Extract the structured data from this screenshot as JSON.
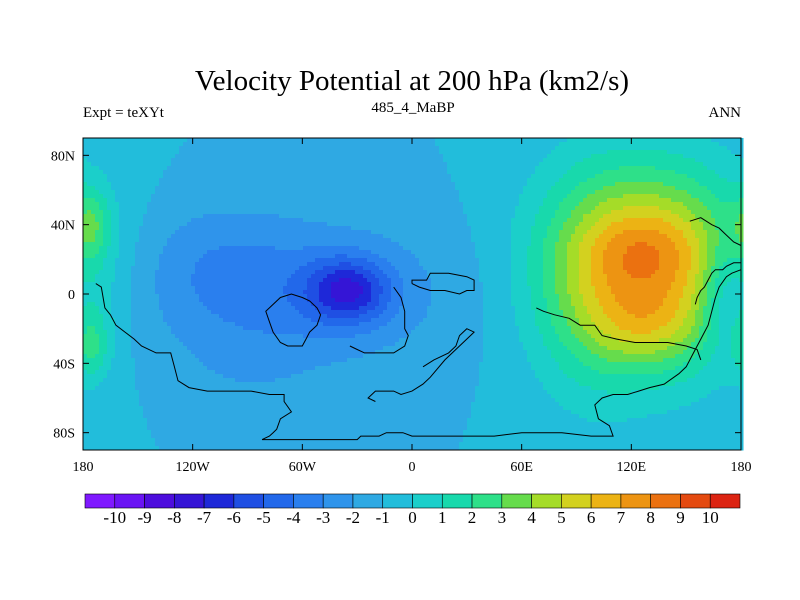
{
  "chart_data": {
    "type": "heatmap",
    "title": "Velocity Potential at 200 hPa (km2/s)",
    "left_label": "Expt = teXYt",
    "center_label": "485_4_MaBP",
    "right_label": "ANN",
    "x_ticks": [
      "180",
      "120W",
      "60W",
      "0",
      "60E",
      "120E",
      "180"
    ],
    "y_ticks": [
      "80N",
      "40N",
      "0",
      "40S",
      "80S"
    ],
    "xlim": [
      -180,
      180
    ],
    "ylim": [
      -90,
      90
    ],
    "colorbar_labels": [
      "-10",
      "-9",
      "-8",
      "-7",
      "-6",
      "-5",
      "-4",
      "-3",
      "-2",
      "-1",
      "0",
      "1",
      "2",
      "3",
      "4",
      "5",
      "6",
      "7",
      "8",
      "9",
      "10"
    ],
    "colorbar_colors": [
      "#7f19ff",
      "#6a14f4",
      "#4d0ddd",
      "#3515d6",
      "#1e28d8",
      "#1f4fe3",
      "#2268ea",
      "#2a7fee",
      "#2f94eb",
      "#2fa9e3",
      "#22bddb",
      "#1bcfca",
      "#18d9ac",
      "#2ee089",
      "#66dc4c",
      "#a5dc28",
      "#d3d11f",
      "#ecb314",
      "#ed9412",
      "#eb7110",
      "#e44a10",
      "#dc2412"
    ],
    "field_blobs": [
      {
        "lon": 130,
        "lat": 15,
        "amp": 8.2,
        "sx": 38,
        "sy": 40
      },
      {
        "lon": 128,
        "lat": -20,
        "amp": 1.4,
        "sx": 20,
        "sy": 14
      },
      {
        "lon": 128,
        "lat": 28,
        "amp": 1.0,
        "sx": 22,
        "sy": 14
      },
      {
        "lon": 95,
        "lat": 0,
        "amp": 1.2,
        "sx": 22,
        "sy": 55
      },
      {
        "lon": -35,
        "lat": 2,
        "amp": -4.6,
        "sx": 16,
        "sy": 13
      },
      {
        "lon": -70,
        "lat": 0,
        "amp": -2.4,
        "sx": 60,
        "sy": 30
      },
      {
        "lon": -110,
        "lat": 25,
        "amp": -0.7,
        "sx": 30,
        "sy": 22
      },
      {
        "lon": -90,
        "lat": -45,
        "amp": -0.5,
        "sx": 25,
        "sy": 15
      },
      {
        "lon": -175,
        "lat": 40,
        "amp": 2.4,
        "sx": 7,
        "sy": 14
      },
      {
        "lon": -175,
        "lat": -30,
        "amp": 2.4,
        "sx": 7,
        "sy": 14
      },
      {
        "lon": 170,
        "lat": 0,
        "amp": -2.2,
        "sx": 9,
        "sy": 22
      }
    ],
    "field_background": -1.0,
    "coastlines": [
      [
        [
          -173,
          6
        ],
        [
          -170,
          4
        ],
        [
          -168,
          -8
        ],
        [
          -165,
          -12
        ],
        [
          -162,
          -18
        ],
        [
          -157,
          -22
        ],
        [
          -152,
          -26
        ],
        [
          -148,
          -30
        ],
        [
          -140,
          -34
        ],
        [
          -132,
          -34
        ],
        [
          -130,
          -42
        ],
        [
          -128,
          -50
        ],
        [
          -122,
          -54
        ],
        [
          -112,
          -56
        ],
        [
          -100,
          -56
        ],
        [
          -88,
          -56
        ],
        [
          -78,
          -58
        ],
        [
          -70,
          -58
        ],
        [
          -70,
          -62
        ],
        [
          -66,
          -68
        ],
        [
          -72,
          -72
        ],
        [
          -74,
          -78
        ],
        [
          -76,
          -80
        ],
        [
          -78,
          -82
        ],
        [
          -82,
          -84
        ],
        [
          -60,
          -84
        ],
        [
          -40,
          -84
        ],
        [
          -30,
          -84
        ],
        [
          -28,
          -82
        ],
        [
          -18,
          -82
        ],
        [
          -14,
          -80
        ],
        [
          -5,
          -80
        ],
        [
          0,
          -82
        ],
        [
          20,
          -82
        ],
        [
          30,
          -82
        ],
        [
          45,
          -82
        ],
        [
          60,
          -80
        ],
        [
          82,
          -80
        ],
        [
          98,
          -82
        ],
        [
          110,
          -82
        ],
        [
          108,
          -76
        ],
        [
          102,
          -72
        ],
        [
          100,
          -64
        ],
        [
          104,
          -60
        ],
        [
          110,
          -58
        ],
        [
          118,
          -58
        ],
        [
          124,
          -56
        ],
        [
          130,
          -54
        ],
        [
          138,
          -52
        ],
        [
          146,
          -46
        ],
        [
          150,
          -42
        ],
        [
          154,
          -34
        ],
        [
          158,
          -26
        ],
        [
          162,
          -18
        ],
        [
          164,
          -10
        ],
        [
          166,
          -2
        ],
        [
          168,
          4
        ],
        [
          172,
          10
        ],
        [
          175,
          12
        ],
        [
          180,
          14
        ]
      ],
      [
        [
          -60,
          -2
        ],
        [
          -56,
          -4
        ],
        [
          -52,
          -8
        ],
        [
          -50,
          -12
        ],
        [
          -52,
          -18
        ],
        [
          -56,
          -22
        ],
        [
          -58,
          -26
        ],
        [
          -60,
          -30
        ],
        [
          -68,
          -30
        ],
        [
          -72,
          -28
        ],
        [
          -76,
          -22
        ],
        [
          -78,
          -16
        ],
        [
          -80,
          -10
        ],
        [
          -76,
          -6
        ],
        [
          -72,
          -2
        ],
        [
          -66,
          0
        ],
        [
          -60,
          -2
        ]
      ],
      [
        [
          -10,
          4
        ],
        [
          -6,
          -2
        ],
        [
          -4,
          -10
        ],
        [
          -4,
          -20
        ],
        [
          -2,
          -24
        ],
        [
          -4,
          -30
        ],
        [
          -10,
          -34
        ],
        [
          -16,
          -34
        ],
        [
          -20,
          -34
        ],
        [
          -26,
          -34
        ],
        [
          -30,
          -32
        ],
        [
          -34,
          -30
        ]
      ],
      [
        [
          6,
          -42
        ],
        [
          12,
          -38
        ],
        [
          20,
          -34
        ],
        [
          24,
          -30
        ],
        [
          26,
          -24
        ],
        [
          30,
          -20
        ],
        [
          34,
          -22
        ],
        [
          28,
          -28
        ],
        [
          18,
          -38
        ],
        [
          10,
          -48
        ],
        [
          6,
          -52
        ],
        [
          0,
          -56
        ],
        [
          -6,
          -58
        ],
        [
          -10,
          -56
        ],
        [
          -20,
          -56
        ],
        [
          -24,
          -60
        ],
        [
          -20,
          -62
        ]
      ],
      [
        [
          0,
          6
        ],
        [
          0,
          8
        ],
        [
          8,
          8
        ],
        [
          10,
          12
        ],
        [
          20,
          12
        ],
        [
          30,
          10
        ],
        [
          34,
          8
        ],
        [
          34,
          2
        ],
        [
          30,
          2
        ],
        [
          26,
          0
        ],
        [
          18,
          2
        ],
        [
          10,
          2
        ],
        [
          4,
          4
        ],
        [
          0,
          6
        ]
      ],
      [
        [
          68,
          -8
        ],
        [
          72,
          -10
        ],
        [
          78,
          -12
        ],
        [
          86,
          -14
        ],
        [
          92,
          -18
        ],
        [
          100,
          -18
        ],
        [
          104,
          -24
        ],
        [
          112,
          -26
        ],
        [
          122,
          -28
        ],
        [
          130,
          -28
        ],
        [
          140,
          -28
        ],
        [
          150,
          -30
        ],
        [
          156,
          -32
        ],
        [
          158,
          -38
        ]
      ],
      [
        [
          152,
          42
        ],
        [
          158,
          44
        ],
        [
          164,
          40
        ],
        [
          168,
          38
        ],
        [
          172,
          34
        ],
        [
          176,
          30
        ],
        [
          180,
          28
        ]
      ],
      [
        [
          155,
          -6
        ],
        [
          156,
          -2
        ],
        [
          158,
          2
        ],
        [
          160,
          4
        ],
        [
          162,
          8
        ],
        [
          164,
          12
        ],
        [
          166,
          14
        ],
        [
          170,
          14
        ],
        [
          172,
          16
        ],
        [
          176,
          18
        ],
        [
          180,
          18
        ]
      ]
    ]
  }
}
